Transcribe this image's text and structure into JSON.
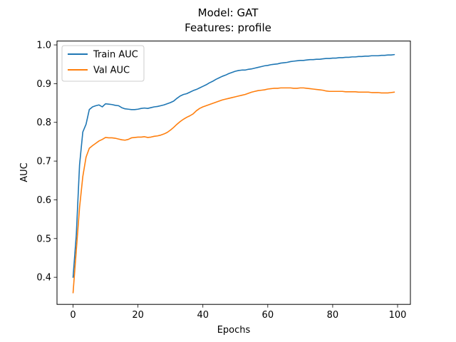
{
  "chart_data": {
    "type": "line",
    "title": "Model: GAT",
    "subtitle": "Features: profile",
    "xlabel": "Epochs",
    "ylabel": "AUC",
    "xlim": [
      -4.95,
      103.95
    ],
    "ylim": [
      0.33,
      1.01
    ],
    "xticks": [
      0,
      20,
      40,
      60,
      80,
      100
    ],
    "yticks": [
      0.4,
      0.5,
      0.6,
      0.7,
      0.8,
      0.9,
      1.0
    ],
    "xtick_labels": [
      "0",
      "20",
      "40",
      "60",
      "80",
      "100"
    ],
    "ytick_labels": [
      "0.4",
      "0.5",
      "0.6",
      "0.7",
      "0.8",
      "0.9",
      "1.0"
    ],
    "grid": false,
    "legend_position": "top-left",
    "series": [
      {
        "name": "Train AUC",
        "color": "#1f77b4",
        "x": [
          0,
          1,
          2,
          3,
          4,
          5,
          6,
          7,
          8,
          9,
          10,
          11,
          12,
          13,
          14,
          15,
          16,
          17,
          18,
          19,
          20,
          21,
          22,
          23,
          24,
          25,
          26,
          27,
          28,
          29,
          30,
          31,
          32,
          33,
          34,
          35,
          36,
          37,
          38,
          39,
          40,
          41,
          42,
          43,
          44,
          45,
          46,
          47,
          48,
          49,
          50,
          51,
          52,
          53,
          54,
          55,
          56,
          57,
          58,
          59,
          60,
          61,
          62,
          63,
          64,
          65,
          66,
          67,
          68,
          69,
          70,
          71,
          72,
          73,
          74,
          75,
          76,
          77,
          78,
          79,
          80,
          81,
          82,
          83,
          84,
          85,
          86,
          87,
          88,
          89,
          90,
          91,
          92,
          93,
          94,
          95,
          96,
          97,
          98,
          99
        ],
        "values": [
          0.4,
          0.51,
          0.69,
          0.775,
          0.795,
          0.833,
          0.84,
          0.843,
          0.845,
          0.84,
          0.848,
          0.847,
          0.846,
          0.844,
          0.843,
          0.838,
          0.835,
          0.834,
          0.833,
          0.833,
          0.834,
          0.836,
          0.837,
          0.836,
          0.838,
          0.84,
          0.841,
          0.843,
          0.845,
          0.848,
          0.851,
          0.855,
          0.862,
          0.868,
          0.872,
          0.874,
          0.878,
          0.882,
          0.885,
          0.889,
          0.893,
          0.897,
          0.902,
          0.906,
          0.911,
          0.915,
          0.919,
          0.922,
          0.926,
          0.929,
          0.932,
          0.934,
          0.935,
          0.935,
          0.937,
          0.938,
          0.94,
          0.942,
          0.944,
          0.946,
          0.947,
          0.949,
          0.95,
          0.951,
          0.953,
          0.954,
          0.955,
          0.957,
          0.958,
          0.959,
          0.96,
          0.96,
          0.961,
          0.962,
          0.962,
          0.963,
          0.963,
          0.964,
          0.965,
          0.965,
          0.966,
          0.966,
          0.967,
          0.967,
          0.968,
          0.968,
          0.969,
          0.969,
          0.97,
          0.97,
          0.971,
          0.971,
          0.972,
          0.972,
          0.972,
          0.973,
          0.973,
          0.974,
          0.974,
          0.975
        ]
      },
      {
        "name": "Val AUC",
        "color": "#ff7f0e",
        "x": [
          0,
          1,
          2,
          3,
          4,
          5,
          6,
          7,
          8,
          9,
          10,
          11,
          12,
          13,
          14,
          15,
          16,
          17,
          18,
          19,
          20,
          21,
          22,
          23,
          24,
          25,
          26,
          27,
          28,
          29,
          30,
          31,
          32,
          33,
          34,
          35,
          36,
          37,
          38,
          39,
          40,
          41,
          42,
          43,
          44,
          45,
          46,
          47,
          48,
          49,
          50,
          51,
          52,
          53,
          54,
          55,
          56,
          57,
          58,
          59,
          60,
          61,
          62,
          63,
          64,
          65,
          66,
          67,
          68,
          69,
          70,
          71,
          72,
          73,
          74,
          75,
          76,
          77,
          78,
          79,
          80,
          81,
          82,
          83,
          84,
          85,
          86,
          87,
          88,
          89,
          90,
          91,
          92,
          93,
          94,
          95,
          96,
          97,
          98,
          99
        ],
        "values": [
          0.36,
          0.47,
          0.58,
          0.66,
          0.71,
          0.733,
          0.74,
          0.746,
          0.752,
          0.756,
          0.761,
          0.76,
          0.76,
          0.759,
          0.757,
          0.755,
          0.754,
          0.756,
          0.76,
          0.761,
          0.762,
          0.762,
          0.763,
          0.761,
          0.762,
          0.764,
          0.765,
          0.767,
          0.77,
          0.774,
          0.78,
          0.787,
          0.795,
          0.802,
          0.808,
          0.813,
          0.817,
          0.822,
          0.83,
          0.836,
          0.84,
          0.843,
          0.846,
          0.849,
          0.852,
          0.855,
          0.858,
          0.86,
          0.862,
          0.864,
          0.866,
          0.868,
          0.87,
          0.872,
          0.875,
          0.878,
          0.88,
          0.882,
          0.883,
          0.884,
          0.886,
          0.887,
          0.888,
          0.888,
          0.889,
          0.889,
          0.889,
          0.889,
          0.888,
          0.888,
          0.889,
          0.889,
          0.888,
          0.887,
          0.886,
          0.885,
          0.884,
          0.883,
          0.881,
          0.88,
          0.88,
          0.88,
          0.88,
          0.88,
          0.879,
          0.879,
          0.879,
          0.879,
          0.878,
          0.878,
          0.878,
          0.878,
          0.877,
          0.877,
          0.877,
          0.876,
          0.876,
          0.876,
          0.877,
          0.878
        ]
      }
    ]
  }
}
